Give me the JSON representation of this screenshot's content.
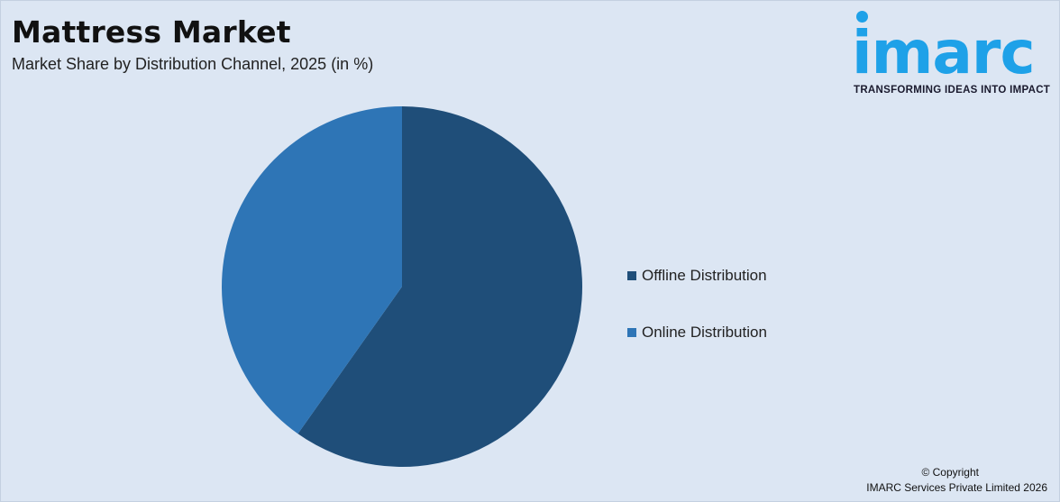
{
  "header": {
    "title": "Mattress Market",
    "subtitle": "Market Share by Distribution Channel, 2025 (in %)"
  },
  "logo": {
    "word": "imarc",
    "tagline": "TRANSFORMING IDEAS INTO IMPACT",
    "color": "#1ea1e8"
  },
  "chart_data": {
    "type": "pie",
    "title": "Mattress Market",
    "subtitle": "Market Share by Distribution Channel, 2025 (in %)",
    "categories": [
      "Offline Distribution",
      "Online Distribution"
    ],
    "values": [
      59.8,
      40.2
    ],
    "colors": [
      "#1f4e79",
      "#2e75b6"
    ],
    "start_angle_deg": 0,
    "direction": "clockwise",
    "legend_position": "right"
  },
  "footer": {
    "copyright_line1": "© Copyright",
    "copyright_line2": "IMARC Services Private Limited 2026"
  }
}
